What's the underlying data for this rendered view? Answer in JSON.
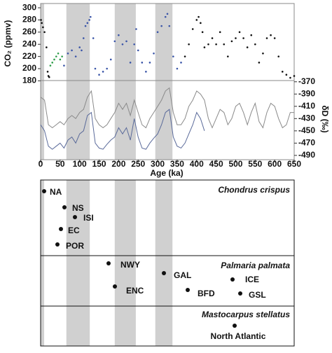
{
  "chart_data": {
    "type": "scatter",
    "xlabel": "Age (ka)",
    "ylabel": "CO₂ (ppmv)",
    "y2label": "δD (‰)",
    "xlim": [
      0,
      650
    ],
    "xticks": [
      0,
      50,
      100,
      150,
      200,
      250,
      300,
      350,
      400,
      450,
      500,
      550,
      600,
      650
    ],
    "ylim": [
      177,
      307
    ],
    "yticks": [
      180,
      200,
      220,
      240,
      260,
      280,
      300
    ],
    "y2lim": [
      -497,
      -368
    ],
    "y2ticks": [
      -370,
      -390,
      -410,
      -430,
      -450,
      -470,
      -490
    ],
    "bands": [
      [
        0,
        9
      ],
      [
        66,
        126
      ],
      [
        190,
        244
      ],
      [
        294,
        338
      ]
    ],
    "band_color": "#d0d0d0",
    "series": [
      {
        "color": "#111111",
        "x": [
          1,
          3,
          6,
          10,
          15,
          18,
          20,
          22
        ],
        "values": [
          280,
          275,
          268,
          260,
          235,
          195,
          188,
          186
        ]
      },
      {
        "color": "#2e9e4a",
        "x": [
          25,
          30,
          35,
          40,
          45,
          50,
          55
        ],
        "values": [
          205,
          210,
          215,
          220,
          225,
          215,
          220
        ]
      },
      {
        "color": "#3a55a8",
        "x": [
          60,
          70,
          80,
          90,
          100,
          105,
          110,
          115,
          120,
          125,
          128,
          135,
          140,
          150,
          160,
          170,
          180,
          190,
          200,
          210,
          220,
          230,
          240,
          245,
          250,
          260,
          270,
          280,
          290,
          300,
          310,
          320,
          325,
          330,
          340,
          350,
          360
        ],
        "values": [
          205,
          225,
          230,
          220,
          235,
          230,
          250,
          270,
          275,
          280,
          285,
          250,
          200,
          190,
          195,
          200,
          215,
          245,
          255,
          240,
          245,
          210,
          240,
          265,
          230,
          210,
          195,
          210,
          225,
          260,
          270,
          285,
          290,
          270,
          220,
          200,
          210
        ]
      },
      {
        "color": "#111111",
        "x": [
          370,
          380,
          390,
          400,
          405,
          410,
          415,
          420,
          430,
          440,
          450,
          460,
          470,
          480,
          490,
          500,
          510,
          520,
          530,
          540,
          550,
          560,
          570,
          580,
          590,
          600,
          610,
          620,
          630,
          640,
          650
        ],
        "values": [
          220,
          240,
          265,
          280,
          285,
          275,
          260,
          235,
          240,
          250,
          240,
          260,
          240,
          220,
          245,
          250,
          260,
          250,
          235,
          255,
          240,
          210,
          225,
          250,
          255,
          250,
          220,
          195,
          190,
          185,
          188
        ]
      },
      {
        "type": "line",
        "axis": "y2",
        "color": "#8a8a8a",
        "x": [
          0,
          10,
          20,
          30,
          40,
          50,
          60,
          70,
          80,
          90,
          100,
          110,
          120,
          130,
          140,
          150,
          160,
          170,
          180,
          190,
          200,
          210,
          220,
          230,
          240,
          250,
          260,
          270,
          280,
          290,
          300,
          310,
          320,
          330,
          340,
          350,
          360,
          370,
          380,
          390,
          400,
          410,
          420,
          430,
          440,
          450,
          460,
          470,
          480,
          490,
          500,
          510,
          520,
          530,
          540,
          550,
          560,
          570,
          580,
          590,
          600,
          610,
          620,
          630,
          640,
          650
        ],
        "values": [
          -395,
          -400,
          -440,
          -445,
          -440,
          -435,
          -440,
          -430,
          -425,
          -430,
          -420,
          -415,
          -395,
          -385,
          -430,
          -440,
          -445,
          -440,
          -430,
          -420,
          -405,
          -415,
          -405,
          -425,
          -400,
          -420,
          -440,
          -445,
          -430,
          -420,
          -410,
          -400,
          -385,
          -380,
          -420,
          -440,
          -440,
          -430,
          -410,
          -400,
          -385,
          -390,
          -400,
          -430,
          -445,
          -430,
          -415,
          -420,
          -440,
          -430,
          -410,
          -405,
          -420,
          -440,
          -420,
          -405,
          -435,
          -445,
          -420,
          -405,
          -410,
          -430,
          -445,
          -440,
          -420,
          -420
        ]
      },
      {
        "type": "line",
        "axis": "y2",
        "color": "#5a6a9a",
        "x": [
          0,
          10,
          20,
          30,
          40,
          50,
          60,
          70,
          80,
          90,
          100,
          110,
          120,
          130,
          140,
          150,
          160,
          170,
          180,
          190,
          200,
          210,
          220,
          230,
          240,
          250,
          260,
          270,
          280,
          290,
          300,
          310,
          320,
          330,
          340,
          350,
          360,
          370,
          380,
          390,
          400,
          410,
          420
        ],
        "values": [
          -440,
          -450,
          -475,
          -480,
          -475,
          -470,
          -478,
          -465,
          -460,
          -470,
          -455,
          -450,
          -425,
          -420,
          -470,
          -478,
          -480,
          -472,
          -465,
          -460,
          -445,
          -455,
          -445,
          -465,
          -430,
          -460,
          -478,
          -480,
          -470,
          -462,
          -455,
          -440,
          -420,
          -415,
          -460,
          -475,
          -478,
          -470,
          -455,
          -440,
          -420,
          -430,
          -450
        ]
      }
    ]
  },
  "panels": [
    {
      "species": "Chondrus crispus",
      "populations": [
        "NA",
        "NS",
        "ISI",
        "EC",
        "POR"
      ]
    },
    {
      "species": "Palmaria palmata",
      "populations": [
        "NWY",
        "GAL",
        "ICE",
        "ENC",
        "BFD",
        "GSL"
      ]
    },
    {
      "species": "Mastocarpus stellatus",
      "populations": [
        "North Atlantic"
      ]
    }
  ]
}
